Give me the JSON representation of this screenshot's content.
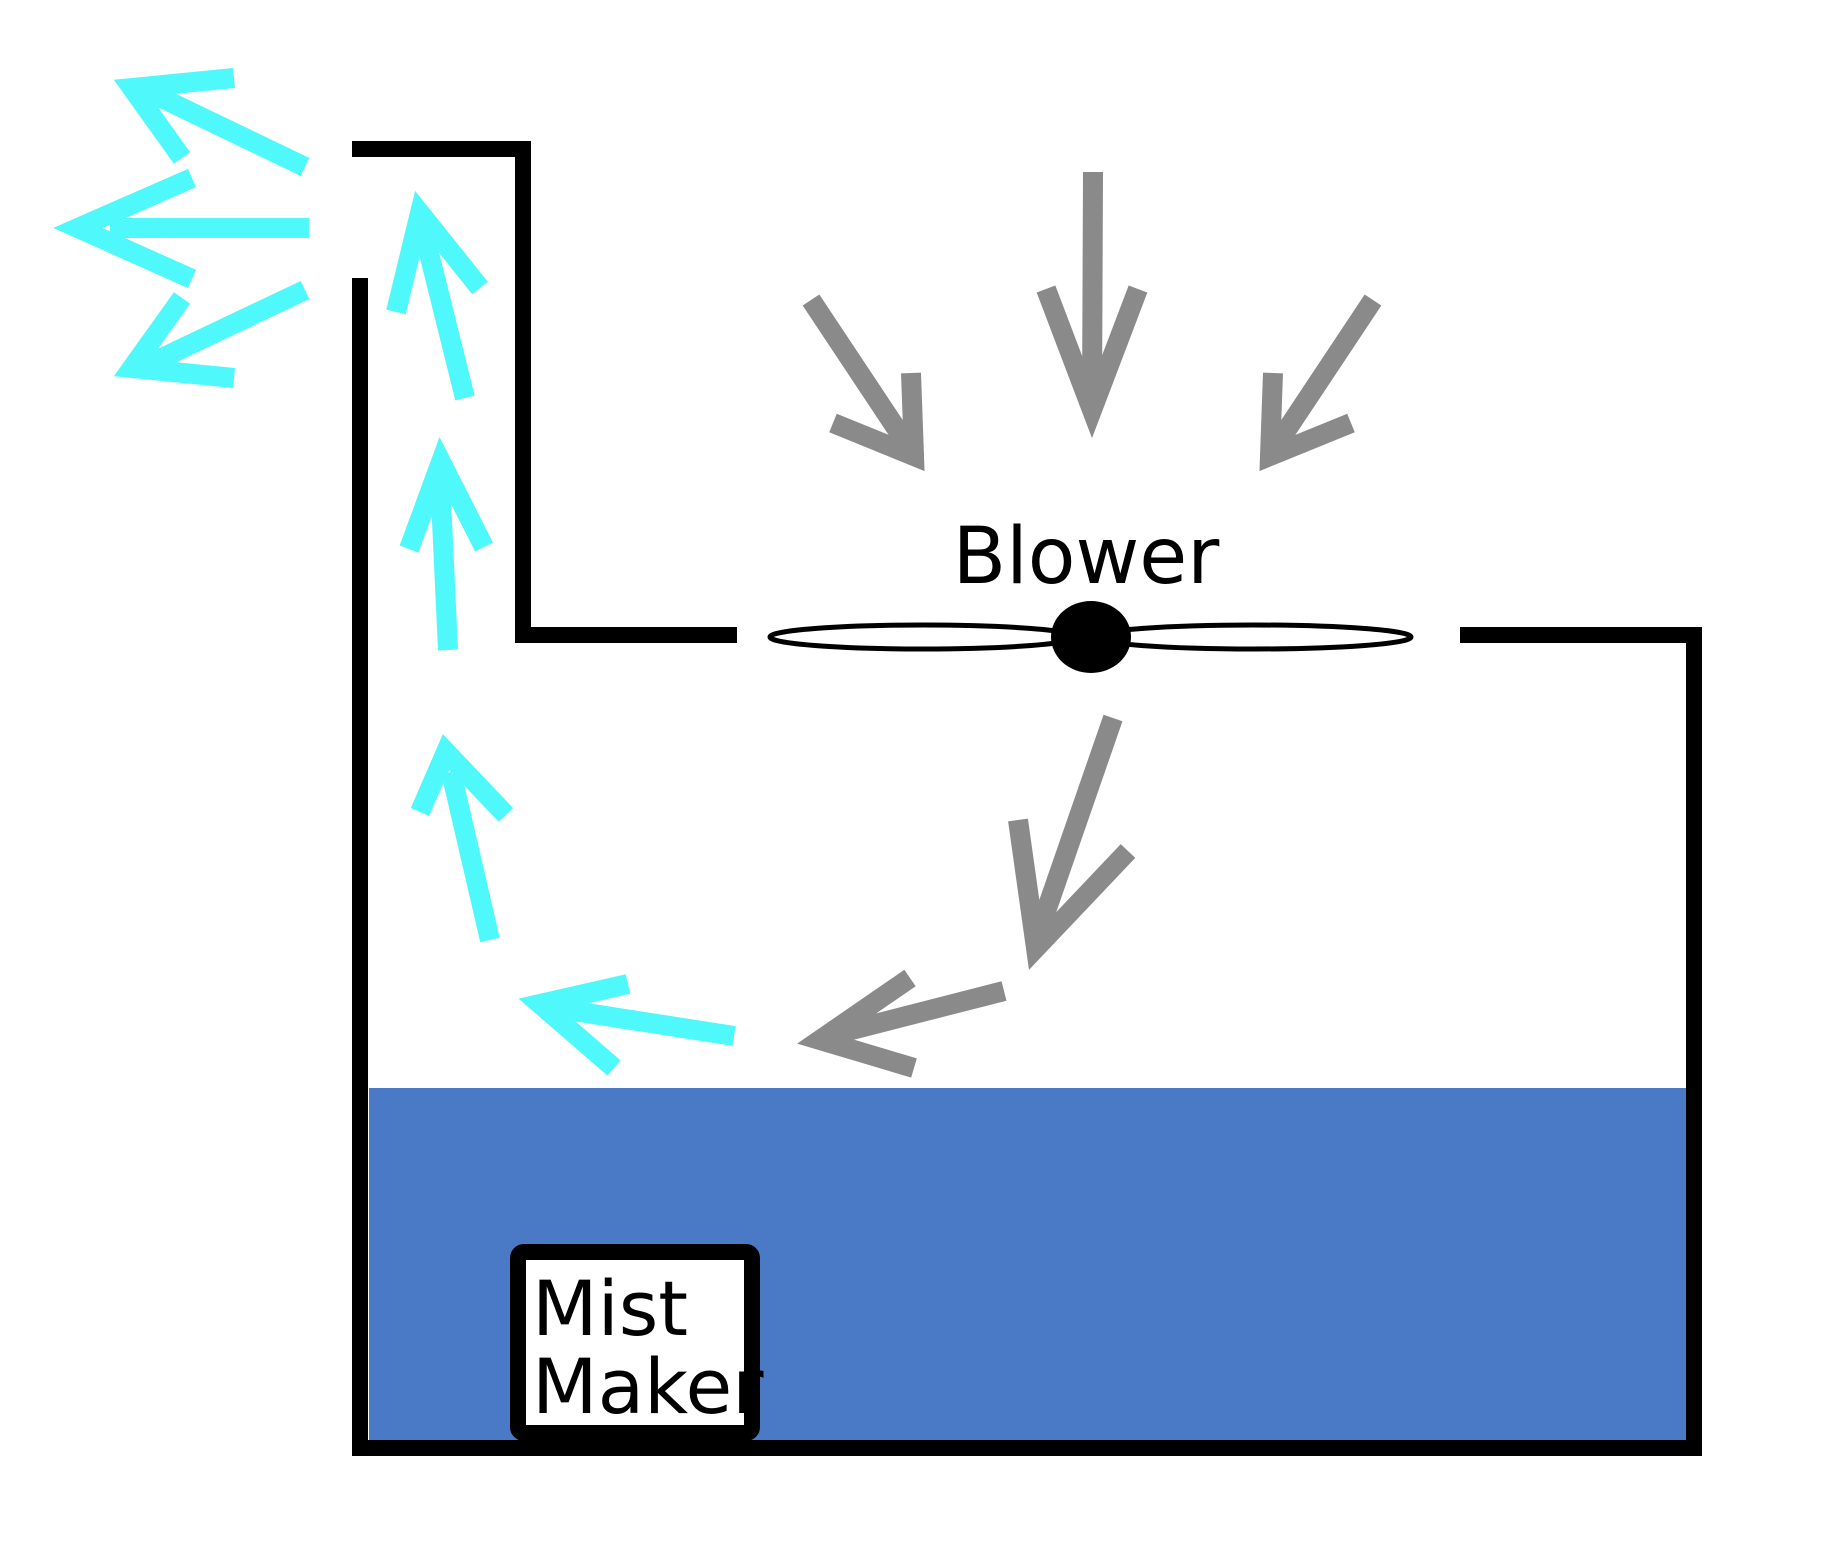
{
  "labels": {
    "blower": "Blower",
    "mist_maker_line1": "Mist",
    "mist_maker_line2": "Maker"
  },
  "colors": {
    "water": "#4a7ac6",
    "mist_arrow": "#4ff8fb",
    "air_arrow": "#8a8a8a",
    "outline": "#000000",
    "background": "#ffffff"
  },
  "icons": {
    "fan": "blower-fan-icon",
    "mist_arrow": "mist-flow-arrow-icon",
    "air_arrow": "air-flow-arrow-icon"
  }
}
